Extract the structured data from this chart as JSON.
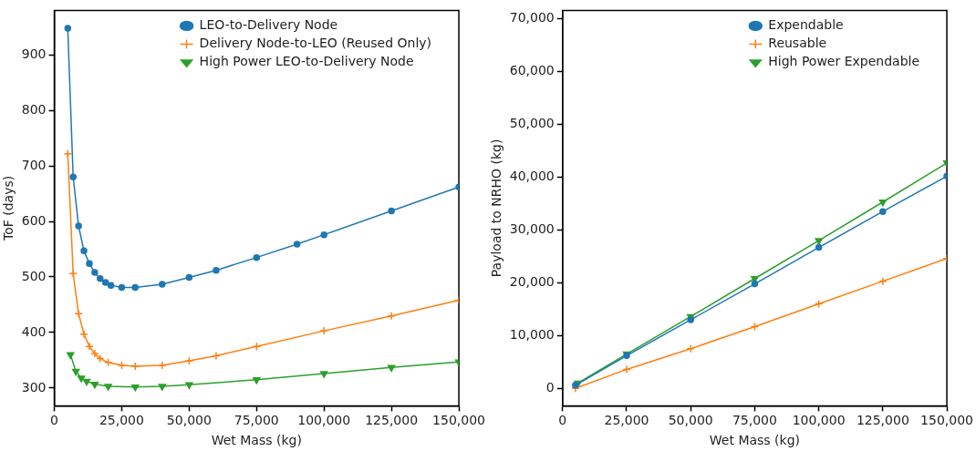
{
  "chart_data": [
    {
      "type": "line",
      "xlabel": "Wet Mass (kg)",
      "ylabel": "ToF (days)",
      "xlim": [
        0,
        150000
      ],
      "ylim": [
        268,
        980
      ],
      "xticks": [
        0,
        {
          "value": 25000,
          "label": "25,000"
        },
        {
          "value": 50000,
          "label": "50,000"
        },
        {
          "value": 75000,
          "label": "75,000"
        },
        {
          "value": 100000,
          "label": "100,000"
        },
        {
          "value": 125000,
          "label": "125,000"
        },
        {
          "value": 150000,
          "label": "150,000"
        }
      ],
      "yticks": [
        300,
        400,
        500,
        600,
        700,
        800,
        900
      ],
      "grid": false,
      "legend": "top right",
      "series": [
        {
          "name": "LEO-to-Delivery Node",
          "color": "#1f77b4",
          "marker": "circle",
          "x": [
            5000,
            7000,
            9000,
            11000,
            13000,
            15000,
            17000,
            19000,
            21000,
            25000,
            30000,
            40000,
            50000,
            60000,
            75000,
            90000,
            100000,
            125000,
            150000
          ],
          "values": [
            948,
            680,
            592,
            547,
            524,
            508,
            497,
            490,
            485,
            481,
            481,
            487,
            499,
            512,
            535,
            559,
            576,
            619,
            662
          ]
        },
        {
          "name": "Delivery Node-to-LEO (Reused Only)",
          "color": "#ff7f0e",
          "marker": "cross",
          "x": [
            5000,
            7000,
            9000,
            11000,
            13000,
            15000,
            17000,
            20000,
            25000,
            30000,
            40000,
            50000,
            60000,
            75000,
            100000,
            125000,
            150000
          ],
          "values": [
            722,
            506,
            434,
            397,
            375,
            362,
            353,
            346,
            341,
            339,
            341,
            349,
            358,
            375,
            403,
            430,
            458
          ]
        },
        {
          "name": "High Power LEO-to-Delivery Node",
          "color": "#2ca02c",
          "marker": "triangle",
          "x": [
            6000,
            8000,
            10000,
            12000,
            15000,
            20000,
            30000,
            40000,
            50000,
            75000,
            100000,
            125000,
            150000
          ],
          "values": [
            360,
            330,
            318,
            312,
            307,
            303,
            302,
            303,
            306,
            315,
            326,
            337,
            347
          ]
        }
      ]
    },
    {
      "type": "line",
      "xlabel": "Wet Mass (kg)",
      "ylabel": "Payload to NRHO (kg)",
      "xlim": [
        0,
        150000
      ],
      "ylim": [
        -3300,
        71600
      ],
      "xticks": [
        0,
        {
          "value": 25000,
          "label": "25,000"
        },
        {
          "value": 50000,
          "label": "50,000"
        },
        {
          "value": 75000,
          "label": "75,000"
        },
        {
          "value": 100000,
          "label": "100,000"
        },
        {
          "value": 125000,
          "label": "125,000"
        },
        {
          "value": 150000,
          "label": "150,000"
        }
      ],
      "yticks": [
        0,
        {
          "value": 10000,
          "label": "10,000"
        },
        {
          "value": 20000,
          "label": "20,000"
        },
        {
          "value": 30000,
          "label": "30,000"
        },
        {
          "value": 40000,
          "label": "40,000"
        },
        {
          "value": 50000,
          "label": "50,000"
        },
        {
          "value": 60000,
          "label": "60,000"
        },
        {
          "value": 70000,
          "label": "70,000"
        }
      ],
      "grid": false,
      "legend": "top right",
      "series": [
        {
          "name": "Expendable",
          "color": "#1f77b4",
          "marker": "circle",
          "x": [
            5000,
            25000,
            50000,
            75000,
            100000,
            125000,
            150000
          ],
          "values": [
            600,
            6200,
            13000,
            19800,
            26700,
            33500,
            40200
          ]
        },
        {
          "name": "Reusable",
          "color": "#ff7f0e",
          "marker": "cross",
          "x": [
            5000,
            25000,
            50000,
            75000,
            100000,
            125000,
            150000
          ],
          "values": [
            0,
            3600,
            7500,
            11700,
            16000,
            20300,
            24600
          ]
        },
        {
          "name": "High Power Expendable",
          "color": "#2ca02c",
          "marker": "triangle",
          "x": [
            6000,
            25000,
            50000,
            75000,
            100000,
            125000,
            150000
          ],
          "values": [
            1000,
            6500,
            13600,
            20800,
            28000,
            35300,
            42700
          ]
        }
      ]
    }
  ]
}
